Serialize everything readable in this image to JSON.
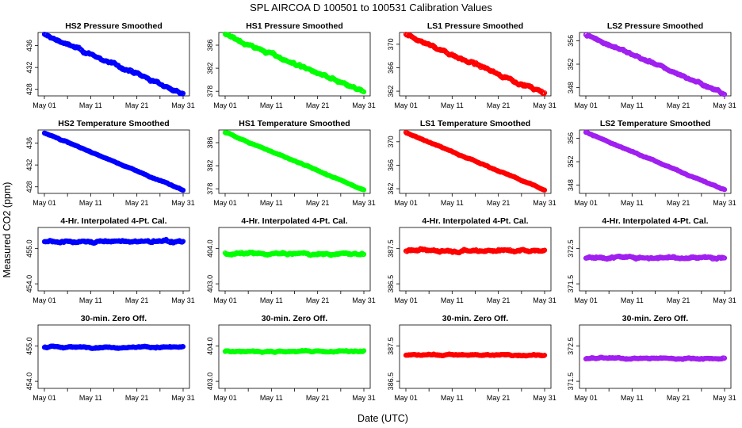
{
  "title": "SPL    AIRCOA D    100501 to 100531    Calibration Values",
  "ylabel": "Measured CO2 (ppm)",
  "xlabel": "Date (UTC)",
  "colors": {
    "hs2": "#0000ff",
    "hs1": "#00ff00",
    "ls1": "#ff0000",
    "ls2": "#a020f0"
  },
  "chart_data": [
    {
      "type": "scatter",
      "title": "HS2 Pressure Smoothed",
      "color": "#0000ff",
      "xticks": [
        "May 01",
        "May 11",
        "May 21",
        "May 31"
      ],
      "xlim": [
        1,
        31
      ],
      "yticks": [
        "428",
        "432",
        "436"
      ],
      "ytick_values": [
        428,
        432,
        436
      ],
      "ylim": [
        426.8,
        438.4
      ],
      "trend": {
        "start": 438.0,
        "end": 427.2
      },
      "noise": 0.35
    },
    {
      "type": "scatter",
      "title": "HS1 Pressure Smoothed",
      "color": "#00ff00",
      "xticks": [
        "May 01",
        "May 11",
        "May 21",
        "May 31"
      ],
      "xlim": [
        1,
        31
      ],
      "yticks": [
        "378",
        "382",
        "386"
      ],
      "ytick_values": [
        378,
        382,
        386
      ],
      "ylim": [
        377.2,
        388.2
      ],
      "trend": {
        "start": 387.8,
        "end": 377.8
      },
      "noise": 0.35
    },
    {
      "type": "scatter",
      "title": "LS1 Pressure Smoothed",
      "color": "#ff0000",
      "xticks": [
        "May 01",
        "May 11",
        "May 21",
        "May 31"
      ],
      "xlim": [
        1,
        31
      ],
      "yticks": [
        "362",
        "366",
        "370"
      ],
      "ytick_values": [
        362,
        366,
        370
      ],
      "ylim": [
        361.2,
        372.0
      ],
      "trend": {
        "start": 371.6,
        "end": 361.6
      },
      "noise": 0.35
    },
    {
      "type": "scatter",
      "title": "LS2 Pressure Smoothed",
      "color": "#a020f0",
      "xticks": [
        "May 01",
        "May 11",
        "May 21",
        "May 31"
      ],
      "xlim": [
        1,
        31
      ],
      "yticks": [
        "348",
        "352",
        "356"
      ],
      "ytick_values": [
        348,
        352,
        356
      ],
      "ylim": [
        346.6,
        357.4
      ],
      "trend": {
        "start": 357.0,
        "end": 347.0
      },
      "noise": 0.3
    },
    {
      "type": "scatter",
      "title": "HS2 Temperature Smoothed",
      "color": "#0000ff",
      "xticks": [
        "May 01",
        "May 11",
        "May 21",
        "May 31"
      ],
      "xlim": [
        1,
        31
      ],
      "yticks": [
        "428",
        "432",
        "436"
      ],
      "ytick_values": [
        428,
        432,
        436
      ],
      "ylim": [
        426.8,
        438.4
      ],
      "trend": {
        "start": 437.9,
        "end": 427.4
      },
      "noise": 0.12
    },
    {
      "type": "scatter",
      "title": "HS1 Temperature Smoothed",
      "color": "#00ff00",
      "xticks": [
        "May 01",
        "May 11",
        "May 21",
        "May 31"
      ],
      "xlim": [
        1,
        31
      ],
      "yticks": [
        "378",
        "382",
        "386"
      ],
      "ytick_values": [
        378,
        382,
        386
      ],
      "ylim": [
        377.2,
        388.2
      ],
      "trend": {
        "start": 387.8,
        "end": 377.8
      },
      "noise": 0.12
    },
    {
      "type": "scatter",
      "title": "LS1 Temperature Smoothed",
      "color": "#ff0000",
      "xticks": [
        "May 01",
        "May 11",
        "May 21",
        "May 31"
      ],
      "xlim": [
        1,
        31
      ],
      "yticks": [
        "362",
        "366",
        "370"
      ],
      "ytick_values": [
        362,
        366,
        370
      ],
      "ylim": [
        361.2,
        372.0
      ],
      "trend": {
        "start": 371.6,
        "end": 361.8
      },
      "noise": 0.12
    },
    {
      "type": "scatter",
      "title": "LS2 Temperature Smoothed",
      "color": "#a020f0",
      "xticks": [
        "May 01",
        "May 11",
        "May 21",
        "May 31"
      ],
      "xlim": [
        1,
        31
      ],
      "yticks": [
        "348",
        "352",
        "356"
      ],
      "ytick_values": [
        348,
        352,
        356
      ],
      "ylim": [
        346.6,
        357.4
      ],
      "trend": {
        "start": 357.0,
        "end": 347.2
      },
      "noise": 0.12
    },
    {
      "type": "scatter",
      "title": "4-Hr. Interpolated 4-Pt. Cal.",
      "color": "#0000ff",
      "xticks": [
        "May 01",
        "May 11",
        "May 21",
        "May 31"
      ],
      "xlim": [
        1,
        31
      ],
      "yticks": [
        "454.0",
        "455.0"
      ],
      "ytick_values": [
        454.0,
        455.0
      ],
      "ylim": [
        453.8,
        455.6
      ],
      "trend": {
        "start": 455.2,
        "end": 455.2
      },
      "noise": 0.05
    },
    {
      "type": "scatter",
      "title": "4-Hr. Interpolated 4-Pt. Cal.",
      "color": "#00ff00",
      "xticks": [
        "May 01",
        "May 11",
        "May 21",
        "May 31"
      ],
      "xlim": [
        1,
        31
      ],
      "yticks": [
        "403.0",
        "404.0"
      ],
      "ytick_values": [
        403.0,
        404.0
      ],
      "ylim": [
        402.8,
        404.6
      ],
      "trend": {
        "start": 403.85,
        "end": 403.85
      },
      "noise": 0.05
    },
    {
      "type": "scatter",
      "title": "4-Hr. Interpolated 4-Pt. Cal.",
      "color": "#ff0000",
      "xticks": [
        "May 01",
        "May 11",
        "May 21",
        "May 31"
      ],
      "xlim": [
        1,
        31
      ],
      "yticks": [
        "386.5",
        "387.5"
      ],
      "ytick_values": [
        386.5,
        387.5
      ],
      "ylim": [
        386.3,
        388.1
      ],
      "trend": {
        "start": 387.45,
        "end": 387.45
      },
      "noise": 0.05
    },
    {
      "type": "scatter",
      "title": "4-Hr. Interpolated 4-Pt. Cal.",
      "color": "#a020f0",
      "xticks": [
        "May 01",
        "May 11",
        "May 21",
        "May 31"
      ],
      "xlim": [
        1,
        31
      ],
      "yticks": [
        "371.5",
        "372.5"
      ],
      "ytick_values": [
        371.5,
        372.5
      ],
      "ylim": [
        371.3,
        373.1
      ],
      "trend": {
        "start": 372.25,
        "end": 372.25
      },
      "noise": 0.05
    },
    {
      "type": "scatter",
      "title": "30-min. Zero Off.",
      "color": "#0000ff",
      "xticks": [
        "May 01",
        "May 11",
        "May 21",
        "May 31"
      ],
      "xlim": [
        1,
        31
      ],
      "yticks": [
        "454.0",
        "455.0"
      ],
      "ytick_values": [
        454.0,
        455.0
      ],
      "ylim": [
        453.8,
        455.6
      ],
      "trend": {
        "start": 454.97,
        "end": 454.97
      },
      "noise": 0.03
    },
    {
      "type": "scatter",
      "title": "30-min. Zero Off.",
      "color": "#00ff00",
      "xticks": [
        "May 01",
        "May 11",
        "May 21",
        "May 31"
      ],
      "xlim": [
        1,
        31
      ],
      "yticks": [
        "403.0",
        "404.0"
      ],
      "ytick_values": [
        403.0,
        404.0
      ],
      "ylim": [
        402.8,
        404.6
      ],
      "trend": {
        "start": 403.85,
        "end": 403.85
      },
      "noise": 0.03
    },
    {
      "type": "scatter",
      "title": "30-min. Zero Off.",
      "color": "#ff0000",
      "xticks": [
        "May 01",
        "May 11",
        "May 21",
        "May 31"
      ],
      "xlim": [
        1,
        31
      ],
      "yticks": [
        "386.5",
        "387.5"
      ],
      "ytick_values": [
        386.5,
        387.5
      ],
      "ylim": [
        386.3,
        388.1
      ],
      "trend": {
        "start": 387.25,
        "end": 387.25
      },
      "noise": 0.03
    },
    {
      "type": "scatter",
      "title": "30-min. Zero Off.",
      "color": "#a020f0",
      "xticks": [
        "May 01",
        "May 11",
        "May 21",
        "May 31"
      ],
      "xlim": [
        1,
        31
      ],
      "yticks": [
        "371.5",
        "372.5"
      ],
      "ytick_values": [
        371.5,
        372.5
      ],
      "ylim": [
        371.3,
        373.1
      ],
      "trend": {
        "start": 372.15,
        "end": 372.15
      },
      "noise": 0.03
    }
  ]
}
